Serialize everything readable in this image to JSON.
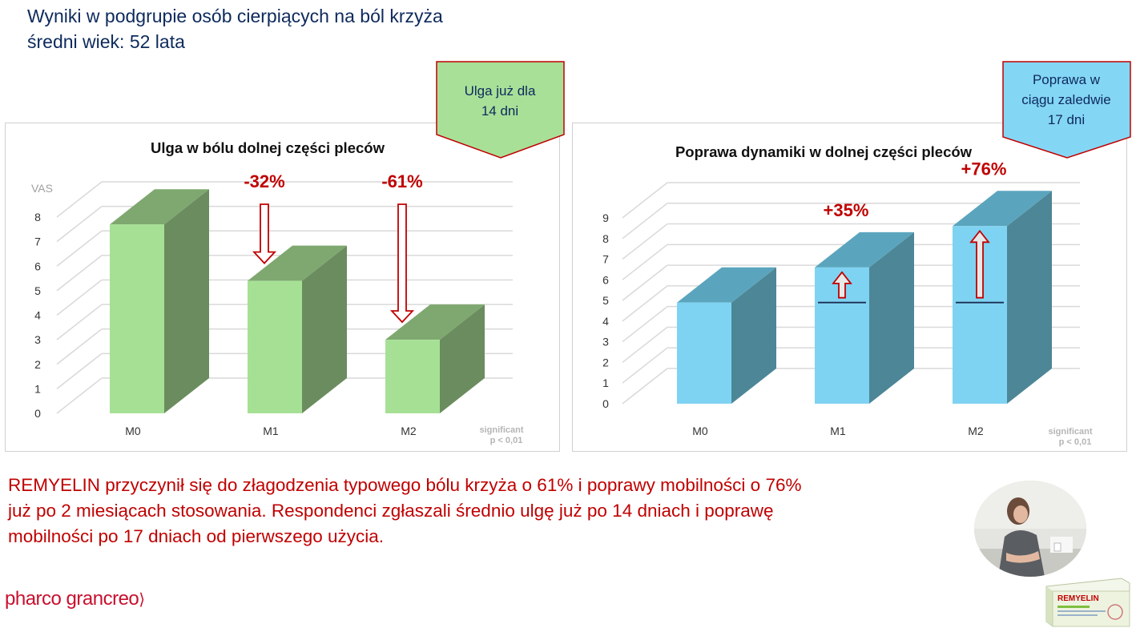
{
  "header": {
    "title": "Wyniki w podgrupie osób cierpiących na ból krzyża",
    "subtitle": "średni wiek: 52 lata"
  },
  "callouts": {
    "left": [
      "Ulga już dla",
      "14 dni"
    ],
    "right": [
      "Poprawa w",
      "ciągu zaledwie",
      "17 dni"
    ]
  },
  "chart_data": [
    {
      "type": "bar",
      "title": "Ulga w bólu dolnej części pleców",
      "ylabel": "VAS",
      "xlabel": "",
      "categories": [
        "M0",
        "M1",
        "M2"
      ],
      "values": [
        7.7,
        5.4,
        3.0
      ],
      "ylim": [
        0,
        8
      ],
      "yticks": [
        0,
        1,
        2,
        3,
        4,
        5,
        6,
        7,
        8
      ],
      "grid": true,
      "annotations": [
        "",
        "-32%",
        "-61%"
      ],
      "arrow_direction": "down",
      "significance": [
        "significant",
        "p < 0,01"
      ],
      "colors": {
        "front": "#a6e095",
        "side": "#6b8c5e",
        "top": "#7ea86f",
        "annotation": "#c00000"
      }
    },
    {
      "type": "bar",
      "title": "Poprawa dynamiki w dolnej części pleców",
      "ylabel": "",
      "xlabel": "",
      "categories": [
        "M0",
        "M1",
        "M2"
      ],
      "values": [
        4.9,
        6.6,
        8.6
      ],
      "baseline": 4.9,
      "ylim": [
        0,
        9
      ],
      "yticks": [
        0,
        1,
        2,
        3,
        4,
        5,
        6,
        7,
        8,
        9
      ],
      "grid": true,
      "annotations": [
        "",
        "+35%",
        "+76%"
      ],
      "arrow_direction": "up",
      "significance": [
        "significant",
        "p < 0,01"
      ],
      "colors": {
        "front": "#7fd3f2",
        "side": "#4d8696",
        "top": "#5aa5bd",
        "annotation": "#c00000"
      }
    }
  ],
  "summary": [
    "REMYELIN przyczynił się do złagodzenia typowego bólu krzyża o 61% i poprawy mobilności o 76%",
    "już po 2 miesiącach stosowania. Respondenci zgłaszali średnio ulgę już po 14 dniach i poprawę",
    "mobilności po 17 dniach od pierwszego użycia."
  ],
  "logo": {
    "text": "pharco grancreo"
  },
  "product": {
    "name": "REMYELIN"
  },
  "colors": {
    "navy": "#0d2a5c",
    "red": "#c00000",
    "callout_green": "#a8e098",
    "callout_blue": "#84d6f5",
    "callout_border": "#c00000"
  }
}
